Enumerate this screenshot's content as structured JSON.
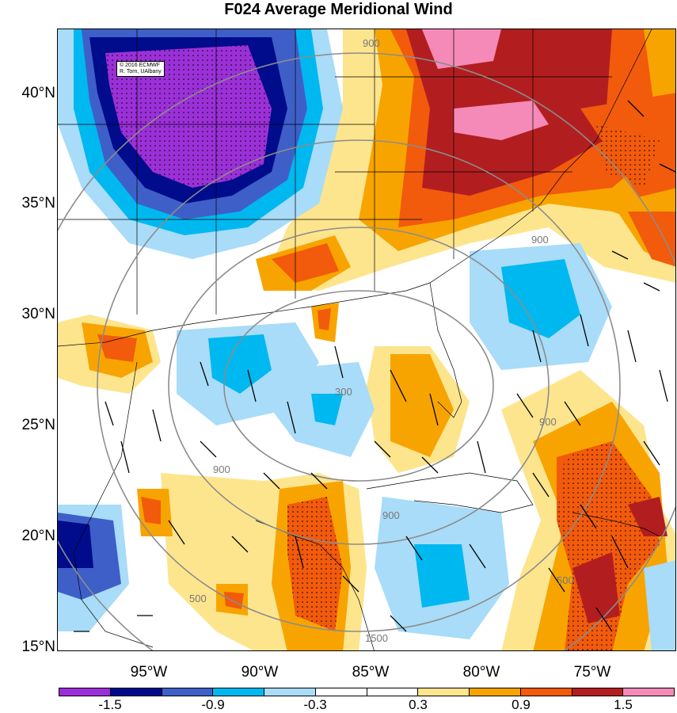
{
  "title": "F024 Average Meridional Wind",
  "credit": [
    "© 2016 ECMWF",
    "R. Torn, UAlbany"
  ],
  "lat_labels": [
    "40°N",
    "35°N",
    "30°N",
    "25°N",
    "20°N",
    "15°N"
  ],
  "lon_labels": [
    "95°W",
    "90°W",
    "85°W",
    "80°W",
    "75°W"
  ],
  "colorbar": {
    "colors": [
      "#9b30d8",
      "#000c8c",
      "#3f5fc8",
      "#00b8f0",
      "#a8dcf8",
      "#ffffff",
      "#ffffff",
      "#fde58e",
      "#f8a400",
      "#f25a0c",
      "#b21e20",
      "#f58ab8"
    ],
    "labels": [
      "-1.5",
      "-0.9",
      "-0.3",
      "0.3",
      "0.9",
      "1.5"
    ]
  },
  "contour_labels": [
    "900",
    "900",
    "900",
    "900",
    "900",
    "300",
    "500",
    "1500",
    "500"
  ]
}
